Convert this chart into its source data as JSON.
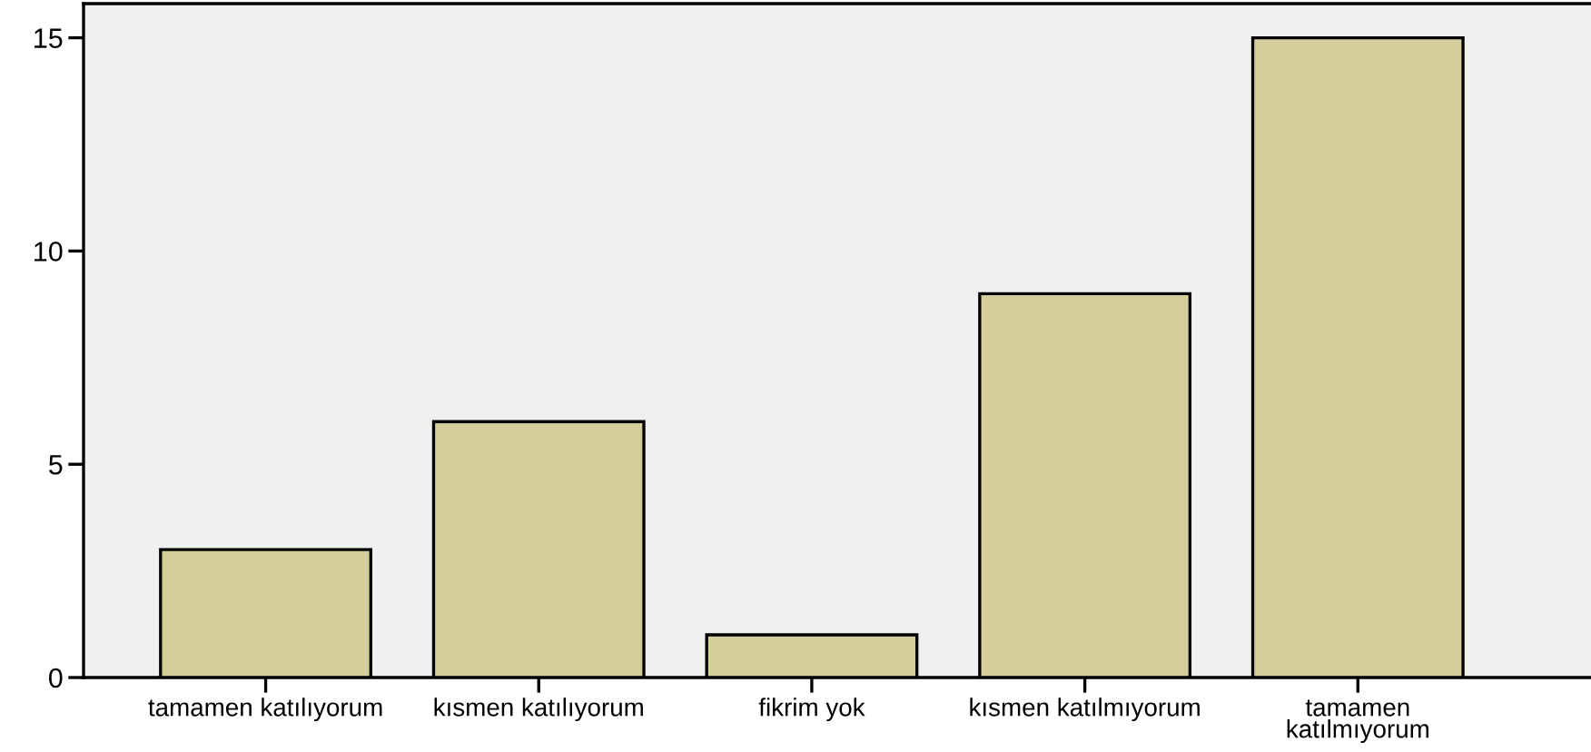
{
  "chart_data": {
    "type": "bar",
    "categories": [
      "tamamen katılıyorum",
      "kısmen katılıyorum",
      "fikrim yok",
      "kısmen katılmıyorum",
      "tamamen\nkatılmıyorum"
    ],
    "values": [
      3,
      6,
      1,
      9,
      15
    ],
    "color": "#d3ce9a",
    "ylim": [
      0,
      15.8
    ],
    "yticks": [
      0,
      5,
      10,
      15
    ],
    "grid": false
  }
}
